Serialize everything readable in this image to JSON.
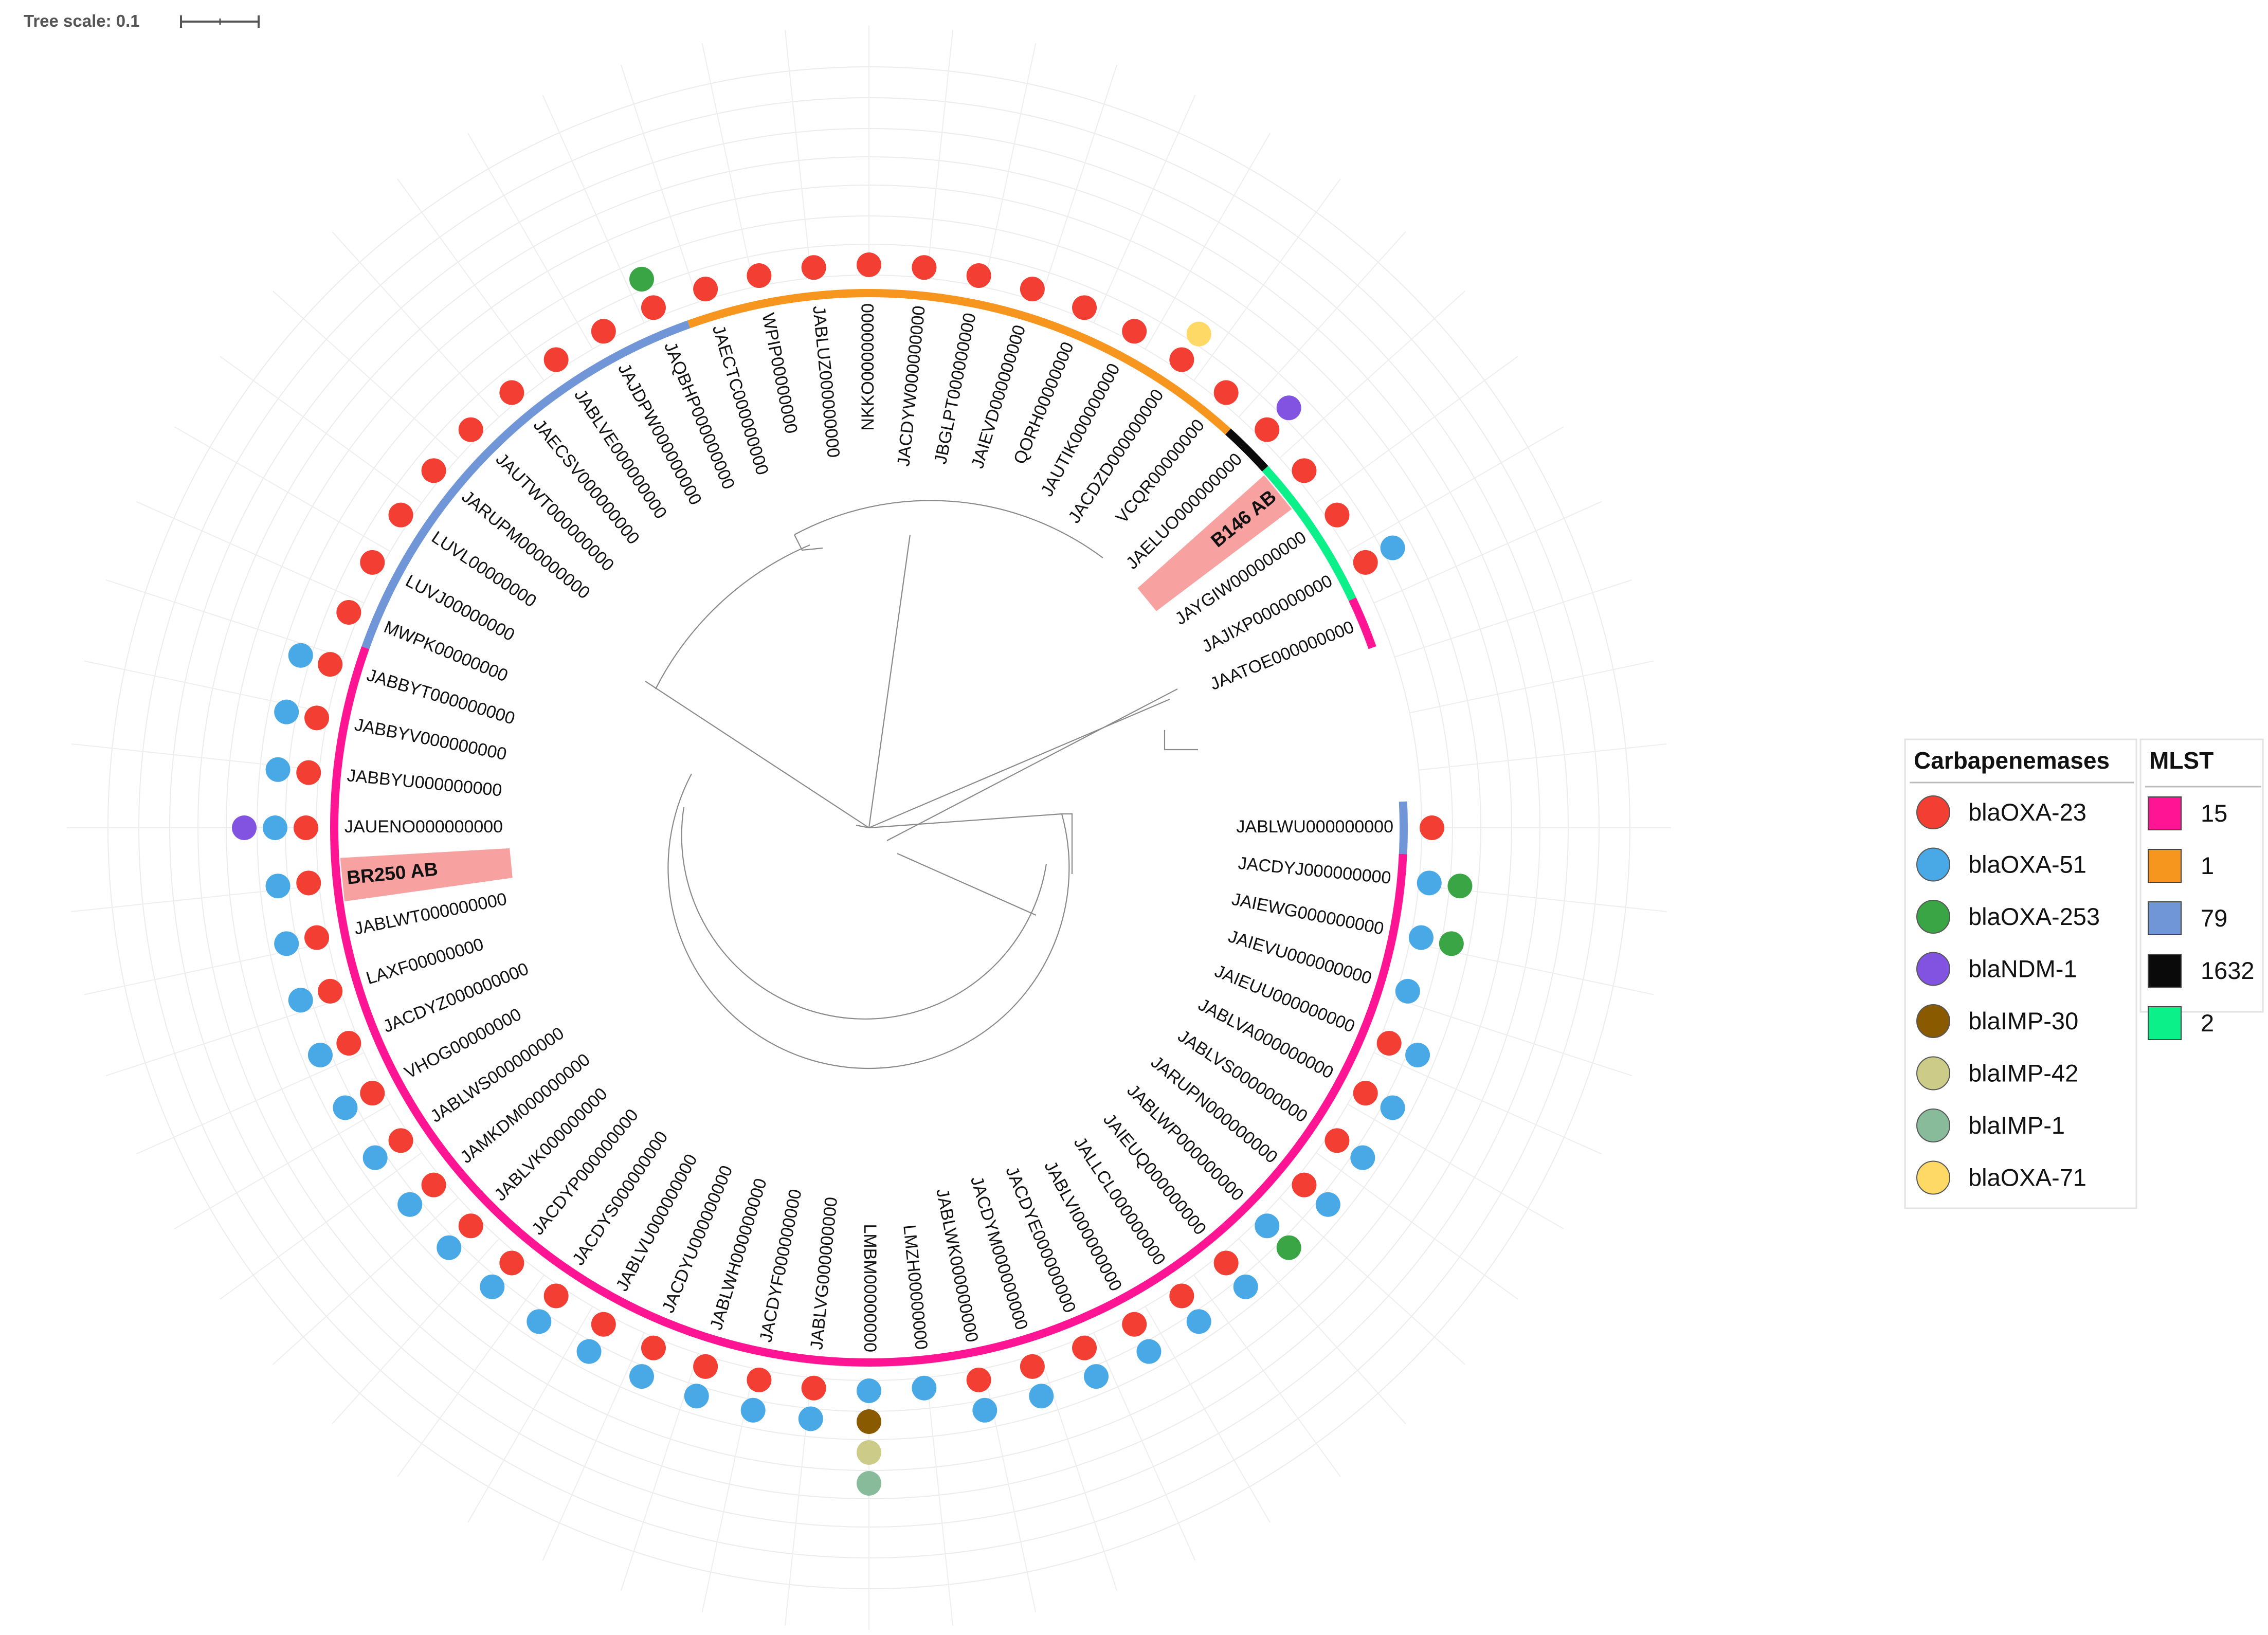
{
  "tree_scale": {
    "label": "Tree scale: 0.1"
  },
  "colors": {
    "mlst": {
      "15": "#ff1493",
      "1": "#f7961f",
      "79": "#7196d8",
      "1632": "#0a0a0a",
      "2": "#0cf08a"
    },
    "genes": {
      "blaOXA-23": "#f23e33",
      "blaOXA-51": "#48a9e6",
      "blaOXA-253": "#3aa545",
      "blaNDM-1": "#8153e0",
      "blaIMP-30": "#8a5a00",
      "blaIMP-42": "#cccc88",
      "blaIMP-1": "#88bb99",
      "blaOXA-71": "#ffd966"
    },
    "highlight": "#f7a1a1"
  },
  "leaves": [
    {
      "label": "JABLWU000000000",
      "mlst": "79",
      "genes": [
        "blaOXA-23"
      ]
    },
    {
      "label": "JACDYJ000000000",
      "mlst": "15",
      "genes": [
        "blaOXA-51",
        "blaOXA-253"
      ]
    },
    {
      "label": "JAIEWG000000000",
      "mlst": "15",
      "genes": [
        "blaOXA-51",
        "blaOXA-253"
      ]
    },
    {
      "label": "JAIEVU000000000",
      "mlst": "15",
      "genes": [
        "blaOXA-51"
      ]
    },
    {
      "label": "JAIEUU000000000",
      "mlst": "15",
      "genes": [
        "blaOXA-23",
        "blaOXA-51"
      ]
    },
    {
      "label": "JABLVA000000000",
      "mlst": "15",
      "genes": [
        "blaOXA-23",
        "blaOXA-51"
      ]
    },
    {
      "label": "JABLVS000000000",
      "mlst": "15",
      "genes": [
        "blaOXA-23",
        "blaOXA-51"
      ]
    },
    {
      "label": "JARUPN000000000",
      "mlst": "15",
      "genes": [
        "blaOXA-23",
        "blaOXA-51"
      ]
    },
    {
      "label": "JABLWP000000000",
      "mlst": "15",
      "genes": [
        "blaOXA-51",
        "blaOXA-253"
      ]
    },
    {
      "label": "JAIEUQ000000000",
      "mlst": "15",
      "genes": [
        "blaOXA-23",
        "blaOXA-51"
      ]
    },
    {
      "label": "JALLCL000000000",
      "mlst": "15",
      "genes": [
        "blaOXA-23",
        "blaOXA-51"
      ]
    },
    {
      "label": "JABLVI000000000",
      "mlst": "15",
      "genes": [
        "blaOXA-23",
        "blaOXA-51"
      ]
    },
    {
      "label": "JACDYE000000000",
      "mlst": "15",
      "genes": [
        "blaOXA-23",
        "blaOXA-51"
      ]
    },
    {
      "label": "JACDYM000000000",
      "mlst": "15",
      "genes": [
        "blaOXA-23",
        "blaOXA-51"
      ]
    },
    {
      "label": "JABLWK000000000",
      "mlst": "15",
      "genes": [
        "blaOXA-23",
        "blaOXA-51"
      ]
    },
    {
      "label": "LMZH00000000",
      "mlst": "15",
      "genes": [
        "blaOXA-51"
      ]
    },
    {
      "label": "LMBM00000000",
      "mlst": "15",
      "genes": [
        "blaOXA-51",
        "blaIMP-30",
        "blaIMP-42",
        "blaIMP-1"
      ]
    },
    {
      "label": "JABLVG000000000",
      "mlst": "15",
      "genes": [
        "blaOXA-23",
        "blaOXA-51"
      ]
    },
    {
      "label": "JACDYF000000000",
      "mlst": "15",
      "genes": [
        "blaOXA-23",
        "blaOXA-51"
      ]
    },
    {
      "label": "JABLWH000000000",
      "mlst": "15",
      "genes": [
        "blaOXA-23",
        "blaOXA-51"
      ]
    },
    {
      "label": "JACDYU000000000",
      "mlst": "15",
      "genes": [
        "blaOXA-23",
        "blaOXA-51"
      ]
    },
    {
      "label": "JABLVU000000000",
      "mlst": "15",
      "genes": [
        "blaOXA-23",
        "blaOXA-51"
      ]
    },
    {
      "label": "JACDYS000000000",
      "mlst": "15",
      "genes": [
        "blaOXA-23",
        "blaOXA-51"
      ]
    },
    {
      "label": "JACDYP000000000",
      "mlst": "15",
      "genes": [
        "blaOXA-23",
        "blaOXA-51"
      ]
    },
    {
      "label": "JABLVK000000000",
      "mlst": "15",
      "genes": [
        "blaOXA-23",
        "blaOXA-51"
      ]
    },
    {
      "label": "JAMKDM000000000",
      "mlst": "15",
      "genes": [
        "blaOXA-23",
        "blaOXA-51"
      ]
    },
    {
      "label": "JABLWS000000000",
      "mlst": "15",
      "genes": [
        "blaOXA-23",
        "blaOXA-51"
      ]
    },
    {
      "label": "VHOG00000000",
      "mlst": "15",
      "genes": [
        "blaOXA-23",
        "blaOXA-51"
      ]
    },
    {
      "label": "JACDYZ000000000",
      "mlst": "15",
      "genes": [
        "blaOXA-23",
        "blaOXA-51"
      ]
    },
    {
      "label": "LAXF00000000",
      "mlst": "15",
      "genes": [
        "blaOXA-23",
        "blaOXA-51"
      ]
    },
    {
      "label": "JABLWT000000000",
      "mlst": "15",
      "genes": [
        "blaOXA-23",
        "blaOXA-51"
      ]
    },
    {
      "label": "BR250 AB",
      "mlst": "15",
      "genes": [
        "blaOXA-23",
        "blaOXA-51"
      ],
      "highlight": true
    },
    {
      "label": "JAUENO000000000",
      "mlst": "15",
      "genes": [
        "blaOXA-23",
        "blaOXA-51",
        "blaNDM-1"
      ]
    },
    {
      "label": "JABBYU000000000",
      "mlst": "15",
      "genes": [
        "blaOXA-23",
        "blaOXA-51"
      ]
    },
    {
      "label": "JABBYV000000000",
      "mlst": "15",
      "genes": [
        "blaOXA-23",
        "blaOXA-51"
      ]
    },
    {
      "label": "JABBYT000000000",
      "mlst": "15",
      "genes": [
        "blaOXA-23",
        "blaOXA-51"
      ]
    },
    {
      "label": "MWPK00000000",
      "mlst": "79",
      "genes": [
        "blaOXA-23"
      ]
    },
    {
      "label": "LUVJ00000000",
      "mlst": "79",
      "genes": [
        "blaOXA-23"
      ]
    },
    {
      "label": "LUVL00000000",
      "mlst": "79",
      "genes": [
        "blaOXA-23"
      ]
    },
    {
      "label": "JARUPM000000000",
      "mlst": "79",
      "genes": [
        "blaOXA-23"
      ]
    },
    {
      "label": "JAUTWT000000000",
      "mlst": "79",
      "genes": [
        "blaOXA-23"
      ]
    },
    {
      "label": "JAECSV000000000",
      "mlst": "79",
      "genes": [
        "blaOXA-23"
      ]
    },
    {
      "label": "JABLVE000000000",
      "mlst": "79",
      "genes": [
        "blaOXA-23"
      ]
    },
    {
      "label": "JAJDPW000000000",
      "mlst": "79",
      "genes": [
        "blaOXA-23"
      ]
    },
    {
      "label": "JAQBHP000000000",
      "mlst": "79",
      "genes": [
        "blaOXA-23",
        "blaOXA-253"
      ]
    },
    {
      "label": "JAECTC000000000",
      "mlst": "1",
      "genes": [
        "blaOXA-23"
      ]
    },
    {
      "label": "WPIP00000000",
      "mlst": "1",
      "genes": [
        "blaOXA-23"
      ]
    },
    {
      "label": "JABLUZ000000000",
      "mlst": "1",
      "genes": [
        "blaOXA-23"
      ]
    },
    {
      "label": "NKKO00000000",
      "mlst": "1",
      "genes": [
        "blaOXA-23"
      ]
    },
    {
      "label": "JACDYW000000000",
      "mlst": "1",
      "genes": [
        "blaOXA-23"
      ]
    },
    {
      "label": "JBGLPT000000000",
      "mlst": "1",
      "genes": [
        "blaOXA-23"
      ]
    },
    {
      "label": "JAIEVD000000000",
      "mlst": "1",
      "genes": [
        "blaOXA-23"
      ]
    },
    {
      "label": "QORH00000000",
      "mlst": "1",
      "genes": [
        "blaOXA-23"
      ]
    },
    {
      "label": "JAUTIK000000000",
      "mlst": "1",
      "genes": [
        "blaOXA-23"
      ]
    },
    {
      "label": "JACDZD000000000",
      "mlst": "1",
      "genes": [
        "blaOXA-23",
        "blaOXA-71"
      ]
    },
    {
      "label": "VCQR00000000",
      "mlst": "1",
      "genes": [
        "blaOXA-23"
      ]
    },
    {
      "label": "JAELUO000000000",
      "mlst": "1632",
      "genes": [
        "blaOXA-23",
        "blaNDM-1"
      ]
    },
    {
      "label": "B146 AB",
      "mlst": "2",
      "genes": [
        "blaOXA-23"
      ],
      "highlight": true
    },
    {
      "label": "JAYGIW000000000",
      "mlst": "2",
      "genes": [
        "blaOXA-23"
      ]
    },
    {
      "label": "JAJIXP000000000",
      "mlst": "2",
      "genes": [
        "blaOXA-23",
        "blaOXA-51"
      ]
    },
    {
      "label": "JAATOE000000000",
      "mlst": "15",
      "genes": []
    }
  ],
  "legend": {
    "carbapenemases": {
      "title": "Carbapenemases",
      "items": [
        {
          "label": "blaOXA-23",
          "color": "#f23e33"
        },
        {
          "label": "blaOXA-51",
          "color": "#48a9e6"
        },
        {
          "label": "blaOXA-253",
          "color": "#3aa545"
        },
        {
          "label": "blaNDM-1",
          "color": "#8153e0"
        },
        {
          "label": "blaIMP-30",
          "color": "#8a5a00"
        },
        {
          "label": "blaIMP-42",
          "color": "#cccc88"
        },
        {
          "label": "blaIMP-1",
          "color": "#88bb99"
        },
        {
          "label": "blaOXA-71",
          "color": "#ffd966"
        }
      ]
    },
    "mlst": {
      "title": "MLST",
      "items": [
        {
          "label": "15",
          "color": "#ff1493"
        },
        {
          "label": "1",
          "color": "#f7961f"
        },
        {
          "label": "79",
          "color": "#7196d8"
        },
        {
          "label": "1632",
          "color": "#0a0a0a"
        },
        {
          "label": "2",
          "color": "#0cf08a"
        }
      ]
    }
  }
}
